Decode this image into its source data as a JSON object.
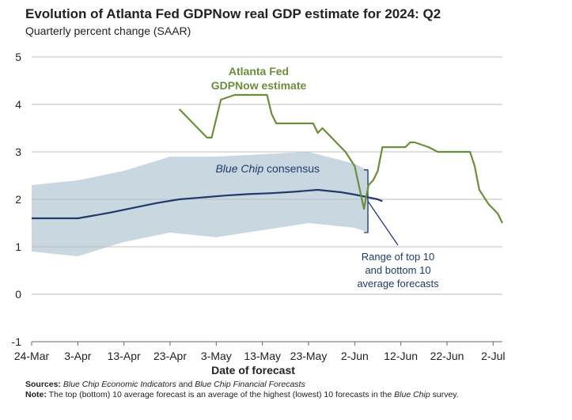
{
  "title": "Evolution of Atlanta Fed GDPNow real GDP estimate for 2024: Q2",
  "subtitle": "Quarterly percent change (SAAR)",
  "chart_data": {
    "type": "line",
    "xlabel": "Date of forecast",
    "ylabel": "",
    "ylim": [
      -1,
      5
    ],
    "yticks": [
      "-1",
      "0",
      "1",
      "2",
      "3",
      "4",
      "5"
    ],
    "xlim": [
      "2024-03-24",
      "2024-07-04"
    ],
    "xticks": [
      "24-Mar",
      "3-Apr",
      "13-Apr",
      "23-Apr",
      "3-May",
      "13-May",
      "23-May",
      "2-Jun",
      "12-Jun",
      "22-Jun",
      "2-Jul"
    ],
    "grid": "horizontal",
    "annotations": {
      "gdpnow_line1": "Atlanta Fed",
      "gdpnow_line2": "GDPNow estimate",
      "consensus_italic": "Blue Chip",
      "consensus_rest": " consensus",
      "range_line1": "Range of top 10",
      "range_line2": "and bottom 10",
      "range_line3": "average forecasts"
    },
    "colors": {
      "gdpnow": "#6b8e3a",
      "consensus": "#1f3a6b",
      "range_fill": "#c9d7e1",
      "gridline": "#bfbfbf",
      "text": "#222222"
    },
    "series": [
      {
        "name": "Atlanta Fed GDPNow estimate",
        "x": [
          "2024-04-25",
          "2024-04-28",
          "2024-04-30",
          "2024-05-01",
          "2024-05-02",
          "2024-05-04",
          "2024-05-07",
          "2024-05-08",
          "2024-05-09",
          "2024-05-14",
          "2024-05-15",
          "2024-05-16",
          "2024-05-24",
          "2024-05-25",
          "2024-05-26",
          "2024-05-29",
          "2024-05-31",
          "2024-06-02",
          "2024-06-04",
          "2024-06-05",
          "2024-06-06",
          "2024-06-07",
          "2024-06-08",
          "2024-06-13",
          "2024-06-14",
          "2024-06-15",
          "2024-06-18",
          "2024-06-20",
          "2024-06-21",
          "2024-06-27",
          "2024-06-28",
          "2024-06-29",
          "2024-07-01",
          "2024-07-03",
          "2024-07-04"
        ],
        "values": [
          3.9,
          3.6,
          3.4,
          3.3,
          3.3,
          4.1,
          4.2,
          4.2,
          4.2,
          4.2,
          3.8,
          3.6,
          3.6,
          3.4,
          3.5,
          3.2,
          3.0,
          2.7,
          1.8,
          2.3,
          2.4,
          2.6,
          3.1,
          3.1,
          3.2,
          3.2,
          3.1,
          3.0,
          3.0,
          3.0,
          2.7,
          2.2,
          1.9,
          1.7,
          1.5
        ]
      },
      {
        "name": "Blue Chip consensus",
        "x": [
          "2024-03-24",
          "2024-04-03",
          "2024-04-06",
          "2024-04-10",
          "2024-04-15",
          "2024-04-20",
          "2024-04-25",
          "2024-04-30",
          "2024-05-05",
          "2024-05-10",
          "2024-05-15",
          "2024-05-20",
          "2024-05-25",
          "2024-05-30",
          "2024-06-02",
          "2024-06-05",
          "2024-06-07",
          "2024-06-08"
        ],
        "values": [
          1.6,
          1.6,
          1.65,
          1.72,
          1.82,
          1.92,
          2.0,
          2.04,
          2.08,
          2.11,
          2.13,
          2.16,
          2.2,
          2.15,
          2.1,
          2.04,
          2.0,
          1.96
        ]
      },
      {
        "name": "Top 10 average",
        "x": [
          "2024-03-24",
          "2024-04-03",
          "2024-04-13",
          "2024-04-23",
          "2024-05-03",
          "2024-05-13",
          "2024-05-23",
          "2024-06-02",
          "2024-06-05"
        ],
        "values": [
          2.3,
          2.4,
          2.6,
          2.9,
          2.9,
          2.95,
          3.0,
          2.75,
          2.6
        ]
      },
      {
        "name": "Bottom 10 average",
        "x": [
          "2024-03-24",
          "2024-04-03",
          "2024-04-13",
          "2024-04-23",
          "2024-05-03",
          "2024-05-13",
          "2024-05-23",
          "2024-06-02",
          "2024-06-05"
        ],
        "values": [
          0.9,
          0.8,
          1.1,
          1.3,
          1.2,
          1.35,
          1.5,
          1.4,
          1.3
        ]
      }
    ]
  },
  "notes": {
    "sources_label": "Sources:",
    "sources_italic1": "Blue Chip Economic Indicators",
    "sources_and": " and ",
    "sources_italic2": "Blue Chip Financial Forecasts",
    "note_label": "Note:",
    "note_text_1": " The top (bottom) 10 average forecast is an average of the highest (lowest) 10 forecasts in the ",
    "note_italic": "Blue Chip",
    "note_text_2": " survey."
  }
}
